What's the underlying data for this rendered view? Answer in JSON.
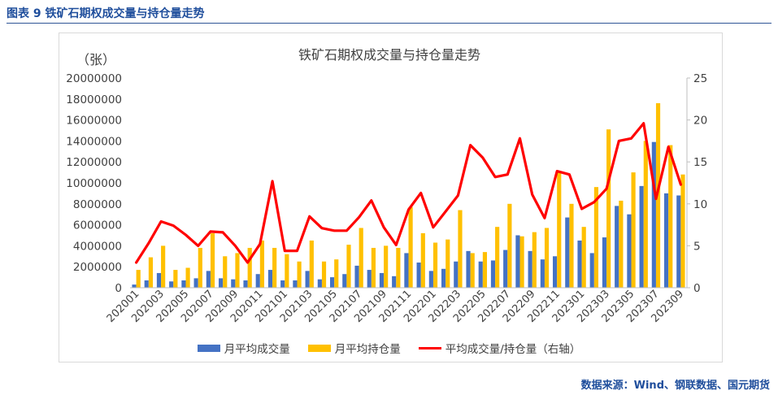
{
  "figure": {
    "caption": "图表  9  铁矿石期权成交量与持仓量走势",
    "source": "数据来源：Wind、钢联数据、国元期货"
  },
  "chart_data": {
    "type": "bar+line",
    "title": "铁矿石期权成交量与持仓量走势",
    "left_unit_label": "（张）",
    "left_axis": {
      "min": 0,
      "max": 20000000,
      "step": 2000000,
      "ticks": [
        "0",
        "2000000",
        "4000000",
        "6000000",
        "8000000",
        "10000000",
        "12000000",
        "14000000",
        "16000000",
        "18000000",
        "20000000"
      ]
    },
    "right_axis": {
      "min": 0,
      "max": 25,
      "step": 5,
      "ticks": [
        "0",
        "5",
        "10",
        "15",
        "20",
        "25"
      ]
    },
    "x_tick_labels": [
      "202001",
      "202003",
      "202005",
      "202007",
      "202009",
      "202011",
      "202101",
      "202103",
      "202105",
      "202107",
      "202109",
      "202111",
      "202201",
      "202203",
      "202205",
      "202207",
      "202209",
      "202211",
      "202301",
      "202303",
      "202305",
      "202307",
      "202309"
    ],
    "categories": [
      "202001",
      "202002",
      "202003",
      "202004",
      "202005",
      "202006",
      "202007",
      "202008",
      "202009",
      "202010",
      "202011",
      "202012",
      "202101",
      "202102",
      "202103",
      "202104",
      "202105",
      "202106",
      "202107",
      "202108",
      "202109",
      "202110",
      "202111",
      "202112",
      "202201",
      "202202",
      "202203",
      "202204",
      "202205",
      "202206",
      "202207",
      "202208",
      "202209",
      "202210",
      "202211",
      "202212",
      "202301",
      "202302",
      "202303",
      "202304",
      "202305",
      "202306",
      "202307",
      "202308",
      "202309"
    ],
    "series": [
      {
        "name": "月平均成交量",
        "kind": "bar",
        "axis": "left",
        "color": "#4472c4",
        "values": [
          300000,
          700000,
          1400000,
          600000,
          700000,
          900000,
          1600000,
          900000,
          800000,
          700000,
          1300000,
          1700000,
          700000,
          700000,
          1600000,
          800000,
          1000000,
          1300000,
          2100000,
          1700000,
          1400000,
          1100000,
          3300000,
          2400000,
          1600000,
          1800000,
          2500000,
          3500000,
          2500000,
          2600000,
          3600000,
          5000000,
          3500000,
          2700000,
          3000000,
          6700000,
          4500000,
          3300000,
          4800000,
          7800000,
          7000000,
          9700000,
          13900000,
          9000000,
          8800000
        ]
      },
      {
        "name": "月平均持仓量",
        "kind": "bar",
        "axis": "left",
        "color": "#ffc000",
        "values": [
          1700000,
          2900000,
          4000000,
          1700000,
          1900000,
          3800000,
          5200000,
          3000000,
          3300000,
          3800000,
          4500000,
          3800000,
          3200000,
          2500000,
          4500000,
          2500000,
          2700000,
          4100000,
          5700000,
          3800000,
          4000000,
          3800000,
          7700000,
          5200000,
          4300000,
          4600000,
          7400000,
          3300000,
          3400000,
          5800000,
          8000000,
          4900000,
          5300000,
          5700000,
          11000000,
          8000000,
          5800000,
          9600000,
          15100000,
          8300000,
          11000000,
          14000000,
          17600000,
          13600000,
          10800000
        ]
      },
      {
        "name": "平均成交量/持仓量（右轴）",
        "kind": "line",
        "axis": "right",
        "color": "#ff0000",
        "values": [
          3.0,
          5.3,
          7.9,
          7.4,
          6.3,
          5.0,
          6.7,
          6.6,
          5.0,
          3.0,
          5.2,
          12.7,
          4.4,
          4.4,
          8.5,
          7.1,
          6.8,
          6.8,
          8.4,
          10.4,
          7.2,
          5.1,
          9.3,
          11.3,
          7.2,
          9.1,
          11.0,
          17.0,
          15.5,
          13.2,
          13.5,
          17.8,
          11.1,
          8.3,
          13.9,
          13.5,
          9.4,
          10.2,
          11.8,
          17.5,
          17.8,
          19.6,
          10.6,
          16.8,
          12.3
        ]
      }
    ],
    "legend_position": "bottom",
    "grid": false
  }
}
